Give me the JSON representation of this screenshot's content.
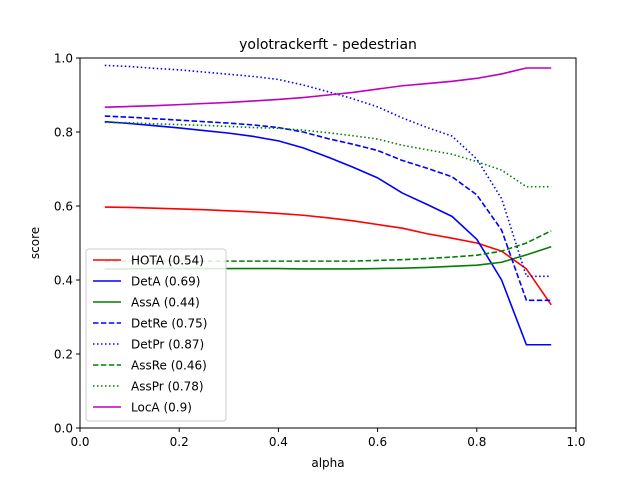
{
  "chart_data": {
    "type": "line",
    "title": "yolotrackerft - pedestrian",
    "xlabel": "alpha",
    "ylabel": "score",
    "xlim": [
      0.0,
      1.0
    ],
    "ylim": [
      0.0,
      1.0
    ],
    "xticks": [
      "0.0",
      "0.2",
      "0.4",
      "0.6",
      "0.8",
      "1.0"
    ],
    "yticks": [
      "0.0",
      "0.2",
      "0.4",
      "0.6",
      "0.8",
      "1.0"
    ],
    "grid": false,
    "legend_position": "lower-left",
    "x": [
      0.05,
      0.1,
      0.15,
      0.2,
      0.25,
      0.3,
      0.35,
      0.4,
      0.45,
      0.5,
      0.55,
      0.6,
      0.65,
      0.7,
      0.75,
      0.8,
      0.85,
      0.9,
      0.95
    ],
    "series": [
      {
        "name": "HOTA (0.54)",
        "color": "#ff0000",
        "style": "solid",
        "values": [
          0.597,
          0.596,
          0.594,
          0.592,
          0.59,
          0.587,
          0.584,
          0.58,
          0.575,
          0.568,
          0.56,
          0.55,
          0.54,
          0.525,
          0.513,
          0.5,
          0.478,
          0.43,
          0.333
        ]
      },
      {
        "name": "DetA (0.69)",
        "color": "#0000ff",
        "style": "solid",
        "values": [
          0.828,
          0.823,
          0.817,
          0.811,
          0.804,
          0.797,
          0.788,
          0.776,
          0.757,
          0.732,
          0.705,
          0.676,
          0.635,
          0.604,
          0.572,
          0.51,
          0.4,
          0.225,
          0.225
        ]
      },
      {
        "name": "AssA (0.44)",
        "color": "#008000",
        "style": "solid",
        "values": [
          0.43,
          0.43,
          0.431,
          0.431,
          0.431,
          0.431,
          0.431,
          0.431,
          0.43,
          0.43,
          0.43,
          0.431,
          0.432,
          0.434,
          0.437,
          0.44,
          0.448,
          0.468,
          0.49
        ]
      },
      {
        "name": "DetRe (0.75)",
        "color": "#0000ff",
        "style": "dashed",
        "values": [
          0.843,
          0.84,
          0.836,
          0.832,
          0.828,
          0.824,
          0.819,
          0.812,
          0.8,
          0.782,
          0.767,
          0.75,
          0.723,
          0.702,
          0.679,
          0.63,
          0.535,
          0.345,
          0.345
        ]
      },
      {
        "name": "DetPr (0.87)",
        "color": "#0000ff",
        "style": "dotted",
        "values": [
          0.98,
          0.977,
          0.972,
          0.968,
          0.962,
          0.956,
          0.95,
          0.942,
          0.927,
          0.909,
          0.89,
          0.868,
          0.838,
          0.812,
          0.789,
          0.727,
          0.62,
          0.41,
          0.41
        ]
      },
      {
        "name": "AssRe (0.46)",
        "color": "#008000",
        "style": "dashed",
        "values": [
          0.45,
          0.451,
          0.451,
          0.451,
          0.451,
          0.451,
          0.451,
          0.451,
          0.451,
          0.451,
          0.451,
          0.453,
          0.455,
          0.458,
          0.462,
          0.467,
          0.478,
          0.5,
          0.533
        ]
      },
      {
        "name": "AssPr (0.78)",
        "color": "#008000",
        "style": "dotted",
        "values": [
          0.826,
          0.825,
          0.822,
          0.82,
          0.818,
          0.815,
          0.812,
          0.81,
          0.805,
          0.798,
          0.79,
          0.781,
          0.764,
          0.752,
          0.74,
          0.72,
          0.697,
          0.652,
          0.652
        ]
      },
      {
        "name": "LocA (0.9)",
        "color": "#bf00bf",
        "style": "solid",
        "values": [
          0.867,
          0.869,
          0.871,
          0.874,
          0.877,
          0.88,
          0.884,
          0.888,
          0.893,
          0.9,
          0.907,
          0.916,
          0.925,
          0.931,
          0.937,
          0.945,
          0.957,
          0.973,
          0.973
        ]
      }
    ]
  }
}
